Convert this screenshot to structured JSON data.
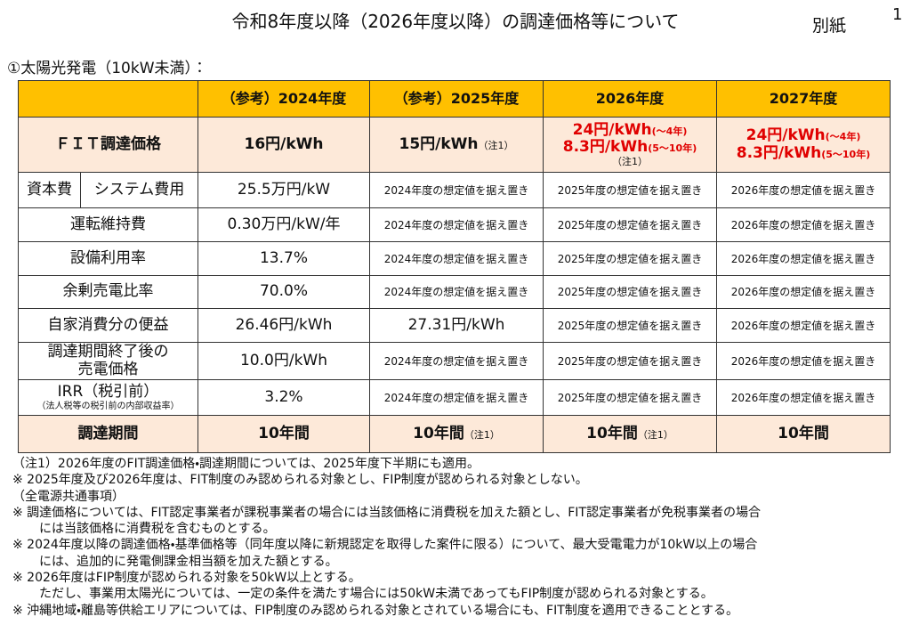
{
  "header": {
    "title": "令和8年度以降（2026年度以降）の調達価格等について",
    "attachment": "別紙",
    "page": "1"
  },
  "section": "①太陽光発電（10kW未満）：",
  "table": {
    "columns": [
      "（参考）2024年度",
      "（参考）2025年度",
      "2026年度",
      "2027年度"
    ],
    "rows": [
      {
        "label": "ＦＩＴ調達価格",
        "cells": [
          "16円/kWh",
          {
            "text": "15円/kWh",
            "note": "（注1）"
          },
          {
            "lines": [
              {
                "text": "24円/kWh",
                "sub": "(～4年)"
              },
              {
                "text": "8.3円/kWh",
                "sub": "(5～10年)"
              }
            ],
            "note": "（注1）"
          },
          {
            "lines": [
              {
                "text": "24円/kWh",
                "sub": "(～4年)"
              },
              {
                "text": "8.3円/kWh",
                "sub": "(5～10年)"
              }
            ]
          }
        ]
      },
      {
        "label": "資本費",
        "sublabel": "システム費用",
        "cells": [
          "25.5万円/kW",
          "2024年度の想定値を据え置き",
          "2025年度の想定値を据え置き",
          "2026年度の想定値を据え置き"
        ]
      },
      {
        "label": "運転維持費",
        "cells": [
          "0.30万円/kW/年",
          "2024年度の想定値を据え置き",
          "2025年度の想定値を据え置き",
          "2026年度の想定値を据え置き"
        ]
      },
      {
        "label": "設備利用率",
        "cells": [
          "13.7%",
          "2024年度の想定値を据え置き",
          "2025年度の想定値を据え置き",
          "2026年度の想定値を据え置き"
        ]
      },
      {
        "label": "余剰売電比率",
        "cells": [
          "70.0%",
          "2024年度の想定値を据え置き",
          "2025年度の想定値を据え置き",
          "2026年度の想定値を据え置き"
        ]
      },
      {
        "label": "自家消費分の便益",
        "cells": [
          "26.46円/kWh",
          "27.31円/kWh",
          "2025年度の想定値を据え置き",
          "2026年度の想定値を据え置き"
        ]
      },
      {
        "label": [
          "調達期間終了後の",
          "売電価格"
        ],
        "cells": [
          "10.0円/kWh",
          "2024年度の想定値を据え置き",
          "2025年度の想定値を据え置き",
          "2026年度の想定値を据え置き"
        ]
      },
      {
        "label": "IRR（税引前）",
        "labelnote": "（法人税等の税引前の内部収益率）",
        "cells": [
          "3.2%",
          "2024年度の想定値を据え置き",
          "2025年度の想定値を据え置き",
          "2026年度の想定値を据え置き"
        ]
      },
      {
        "label": "調達期間",
        "cells": [
          "10年間",
          {
            "text": "10年間",
            "note": "（注1）"
          },
          {
            "text": "10年間",
            "note": "（注1）"
          },
          "10年間"
        ]
      }
    ]
  },
  "notes": [
    {
      "lines": [
        "（注1）2026年度のFIT調達価格・調達期間については、2025年度下半期にも適用。"
      ]
    },
    {
      "lines": [
        "※ 2025年度及び2026年度は、FIT制度のみ認められる対象とし、FIP制度が認められる対象としない。"
      ]
    },
    {
      "lines": [
        "（全電源共通事項）"
      ]
    },
    {
      "lines": [
        "※ 調達価格については、FIT認定事業者が課税事業者の場合には当該価格に消費税を加えた額とし、FIT認定事業者が免税事業者の場合",
        "には当該価格に消費税を含むものとする。"
      ]
    },
    {
      "lines": [
        "※ 2024年度以降の調達価格・基準価格等（同年度以降に新規認定を取得した案件に限る）について、最大受電電力が10kW以上の場合",
        "には、追加的に発電側課金相当額を加えた額とする。"
      ]
    },
    {
      "lines": [
        "※ 2026年度はFIP制度が認められる対象を50kW以上とする。",
        "ただし、事業用太陽光については、一定の条件を満たす場合には50kW未満であってもFIP制度が認められる対象とする。"
      ]
    },
    {
      "lines": [
        "※ 沖縄地域・離島等供給エリアについては、FIP制度のみ認められる対象とされている場合にも、FIT制度を適用できることとする。"
      ]
    }
  ]
}
